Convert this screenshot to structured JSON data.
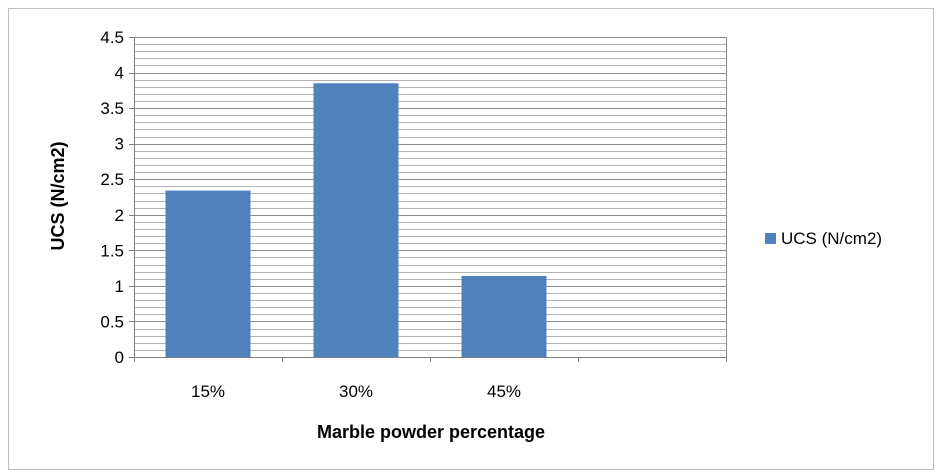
{
  "chart_data": {
    "type": "bar",
    "categories": [
      "15%",
      "30%",
      "45%"
    ],
    "series": [
      {
        "name": "UCS (N/cm2)",
        "values": [
          2.34,
          3.85,
          1.14
        ],
        "color": "#4f81bd"
      }
    ],
    "xlabel": "Marble powder percentage",
    "ylabel": "UCS (N/cm2)",
    "ylim": [
      0,
      4.5
    ],
    "y_ticks": [
      "0",
      "0.5",
      "1",
      "1.5",
      "2",
      "2.5",
      "3",
      "3.5",
      "4",
      "4.5"
    ],
    "grid": true,
    "legend": "right"
  }
}
